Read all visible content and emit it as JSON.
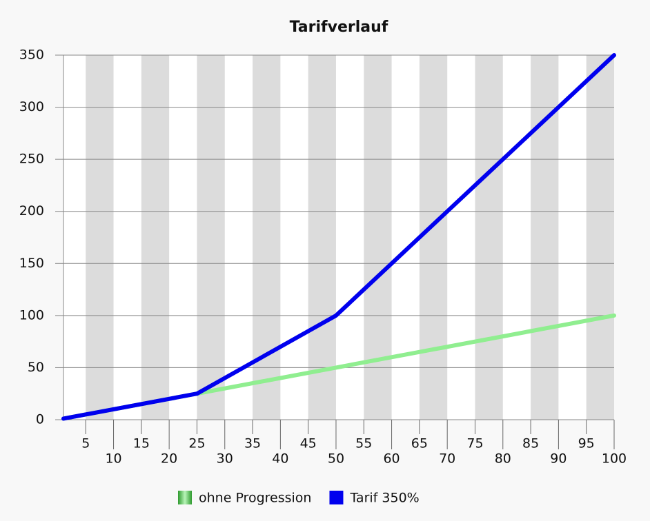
{
  "chart_data": {
    "type": "line",
    "title": "Tarifverlauf",
    "x": [
      1,
      25,
      50,
      100
    ],
    "series": [
      {
        "name": "ohne Progression",
        "color": "#90ee90",
        "values": [
          1,
          25,
          50,
          100
        ]
      },
      {
        "name": "Tarif 350%",
        "color": "#0000ee",
        "values": [
          1,
          25,
          100,
          350
        ]
      }
    ],
    "xlim": [
      1,
      100
    ],
    "xticks": [
      5,
      10,
      15,
      20,
      25,
      30,
      35,
      40,
      45,
      50,
      55,
      60,
      65,
      70,
      75,
      80,
      85,
      90,
      95,
      100
    ],
    "ylim": [
      0,
      350
    ],
    "yticks": [
      0,
      50,
      100,
      150,
      200,
      250,
      300,
      350
    ],
    "grid": true,
    "legend": "bottom"
  }
}
